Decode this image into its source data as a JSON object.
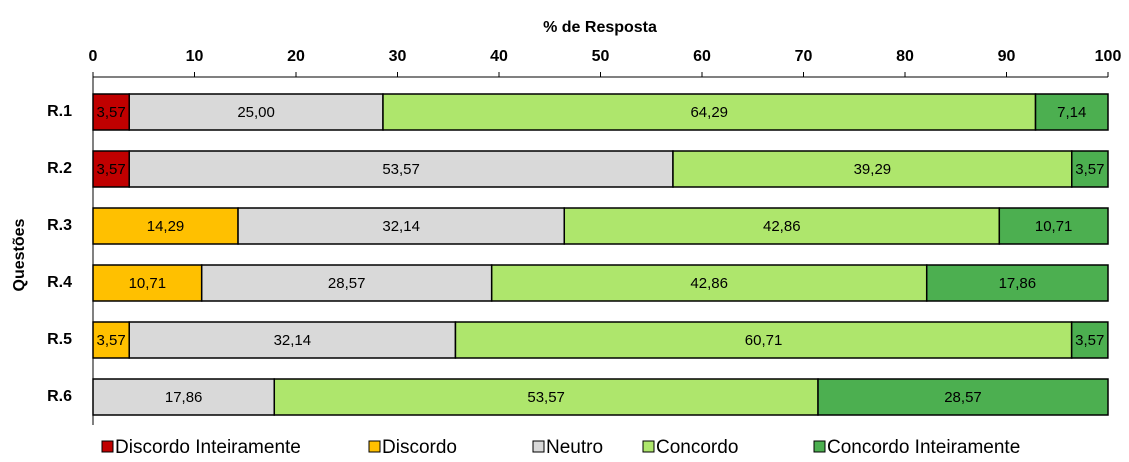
{
  "chart_data": {
    "type": "stacked-bar-horizontal",
    "xlabel": "% de Resposta",
    "ylabel": "Questões",
    "categories": [
      "R.1",
      "R.2",
      "R.3",
      "R.4",
      "R.5",
      "R.6"
    ],
    "xlim": [
      0,
      100
    ],
    "xticks": [
      0,
      10,
      20,
      30,
      40,
      50,
      60,
      70,
      80,
      90,
      100
    ],
    "legend": "bottom",
    "series": [
      {
        "name": "Discordo Inteiramente",
        "color": "#c00000",
        "values": [
          3.57,
          3.57,
          null,
          null,
          null,
          null
        ],
        "value_labels": [
          "3,57",
          "3,57",
          null,
          null,
          null,
          null
        ]
      },
      {
        "name": "Discordo",
        "color": "#ffc000",
        "values": [
          null,
          null,
          14.29,
          10.71,
          3.57,
          null
        ],
        "value_labels": [
          null,
          null,
          "14,29",
          "10,71",
          "3,57",
          null
        ]
      },
      {
        "name": "Neutro",
        "color": "#d9d9d9",
        "values": [
          25.0,
          53.57,
          32.14,
          28.57,
          32.14,
          17.86
        ],
        "value_labels": [
          "25,00",
          "53,57",
          "32,14",
          "28,57",
          "32,14",
          "17,86"
        ]
      },
      {
        "name": "Concordo",
        "color": "#aee66c",
        "values": [
          64.29,
          39.29,
          42.86,
          42.86,
          60.71,
          53.57
        ],
        "value_labels": [
          "64,29",
          "39,29",
          "42,86",
          "42,86",
          "60,71",
          "53,57"
        ]
      },
      {
        "name": "Concordo Inteiramente",
        "color": "#4caf50",
        "values": [
          7.14,
          3.57,
          10.71,
          17.86,
          3.57,
          28.57
        ],
        "value_labels": [
          "7,14",
          "3,57",
          "10,71",
          "17,86",
          "3,57",
          "28,57"
        ]
      }
    ]
  }
}
